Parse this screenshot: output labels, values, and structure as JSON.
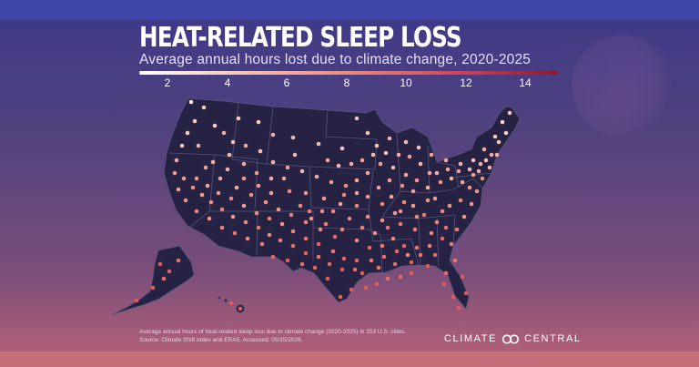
{
  "title": "HEAT-RELATED SLEEP LOSS",
  "subtitle": "Average annual hours lost due to climate change, 2020-2025",
  "legend": {
    "ticks": [
      "2",
      "4",
      "6",
      "8",
      "10",
      "12",
      "14"
    ],
    "min": 1.3,
    "max": 15.5,
    "colors": [
      "#ffffff",
      "#f6c3b8",
      "#ee8a7c",
      "#d2455e",
      "#8e1634"
    ]
  },
  "footnote": {
    "line1": "Average annual hours of heat-related sleep loss due to climate change (2020-2025) in 253 U.S. cities.",
    "line2": "Source: Climate Shift Index and ERA5. Accessed: 05/15/2026."
  },
  "brand": {
    "left": "CLIMATE",
    "right": "CENTRAL"
  },
  "colors": {
    "land": "#262243",
    "border": "#57527a",
    "dot_low": "#fde6d8",
    "dot_high": "#e25a52"
  }
}
